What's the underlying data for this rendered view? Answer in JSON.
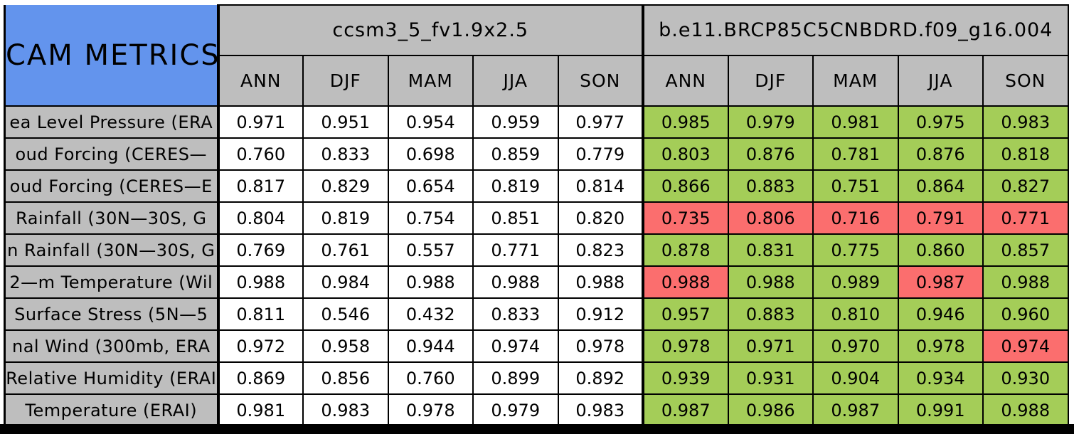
{
  "title": "CAM METRICS",
  "models": [
    {
      "name": "ccsm3_5_fv1.9x2.5"
    },
    {
      "name": "b.e11.BRCP85C5CNBDRD.f09_g16.004"
    }
  ],
  "seasons": [
    "ANN",
    "DJF",
    "MAM",
    "JJA",
    "SON"
  ],
  "colors": {
    "title_blue": "#6394ED",
    "header_gray": "#BEBEBE",
    "improved_green": "#A4CD58",
    "degraded_red": "#FB6E6E",
    "neutral_white": "#FFFFFF",
    "border_black": "#000000"
  },
  "rows": [
    {
      "label": "ea Level Pressure (ERA",
      "model1": [
        "0.971",
        "0.951",
        "0.954",
        "0.959",
        "0.977"
      ],
      "model2": [
        "0.985",
        "0.979",
        "0.981",
        "0.975",
        "0.983"
      ],
      "model2_colors": [
        "green",
        "green",
        "green",
        "green",
        "green"
      ]
    },
    {
      "label": "oud Forcing (CERES—",
      "model1": [
        "0.760",
        "0.833",
        "0.698",
        "0.859",
        "0.779"
      ],
      "model2": [
        "0.803",
        "0.876",
        "0.781",
        "0.876",
        "0.818"
      ],
      "model2_colors": [
        "green",
        "green",
        "green",
        "green",
        "green"
      ]
    },
    {
      "label": "oud Forcing (CERES—E",
      "model1": [
        "0.817",
        "0.829",
        "0.654",
        "0.819",
        "0.814"
      ],
      "model2": [
        "0.866",
        "0.883",
        "0.751",
        "0.864",
        "0.827"
      ],
      "model2_colors": [
        "green",
        "green",
        "green",
        "green",
        "green"
      ]
    },
    {
      "label": "Rainfall (30N—30S, G",
      "model1": [
        "0.804",
        "0.819",
        "0.754",
        "0.851",
        "0.820"
      ],
      "model2": [
        "0.735",
        "0.806",
        "0.716",
        "0.791",
        "0.771"
      ],
      "model2_colors": [
        "red",
        "red",
        "red",
        "red",
        "red"
      ]
    },
    {
      "label": "n Rainfall (30N—30S, G",
      "model1": [
        "0.769",
        "0.761",
        "0.557",
        "0.771",
        "0.823"
      ],
      "model2": [
        "0.878",
        "0.831",
        "0.775",
        "0.860",
        "0.857"
      ],
      "model2_colors": [
        "green",
        "green",
        "green",
        "green",
        "green"
      ]
    },
    {
      "label": "2—m Temperature (Wil",
      "model1": [
        "0.988",
        "0.984",
        "0.988",
        "0.988",
        "0.988"
      ],
      "model2": [
        "0.988",
        "0.988",
        "0.989",
        "0.987",
        "0.988"
      ],
      "model2_colors": [
        "red",
        "green",
        "green",
        "red",
        "green"
      ]
    },
    {
      "label": "Surface Stress (5N—5",
      "model1": [
        "0.811",
        "0.546",
        "0.432",
        "0.833",
        "0.912"
      ],
      "model2": [
        "0.957",
        "0.883",
        "0.810",
        "0.946",
        "0.960"
      ],
      "model2_colors": [
        "green",
        "green",
        "green",
        "green",
        "green"
      ]
    },
    {
      "label": "nal Wind (300mb, ERA",
      "model1": [
        "0.972",
        "0.958",
        "0.944",
        "0.974",
        "0.978"
      ],
      "model2": [
        "0.978",
        "0.971",
        "0.970",
        "0.978",
        "0.974"
      ],
      "model2_colors": [
        "green",
        "green",
        "green",
        "green",
        "red"
      ]
    },
    {
      "label": "Relative Humidity (ERAI",
      "model1": [
        "0.869",
        "0.856",
        "0.760",
        "0.899",
        "0.892"
      ],
      "model2": [
        "0.939",
        "0.931",
        "0.904",
        "0.934",
        "0.930"
      ],
      "model2_colors": [
        "green",
        "green",
        "green",
        "green",
        "green"
      ]
    },
    {
      "label": "Temperature (ERAI)",
      "model1": [
        "0.981",
        "0.983",
        "0.978",
        "0.979",
        "0.983"
      ],
      "model2": [
        "0.987",
        "0.986",
        "0.987",
        "0.991",
        "0.988"
      ],
      "model2_colors": [
        "green",
        "green",
        "green",
        "green",
        "green"
      ]
    }
  ],
  "chart_data": {
    "type": "table",
    "title": "CAM METRICS",
    "column_groups": [
      {
        "name": "ccsm3_5_fv1.9x2.5",
        "columns": [
          "ANN",
          "DJF",
          "MAM",
          "JJA",
          "SON"
        ]
      },
      {
        "name": "b.e11.BRCP85C5CNBDRD.f09_g16.004",
        "columns": [
          "ANN",
          "DJF",
          "MAM",
          "JJA",
          "SON"
        ]
      }
    ],
    "row_labels": [
      "ea Level Pressure (ERA",
      "oud Forcing (CERES—",
      "oud Forcing (CERES—E",
      "Rainfall (30N—30S, G",
      "n Rainfall (30N—30S, G",
      "2—m Temperature (Wil",
      "Surface Stress (5N—5",
      "nal Wind (300mb, ERA",
      "Relative Humidity (ERAI",
      "Temperature (ERAI)"
    ],
    "values_ccsm3_5_fv19x25": [
      [
        0.971,
        0.951,
        0.954,
        0.959,
        0.977
      ],
      [
        0.76,
        0.833,
        0.698,
        0.859,
        0.779
      ],
      [
        0.817,
        0.829,
        0.654,
        0.819,
        0.814
      ],
      [
        0.804,
        0.819,
        0.754,
        0.851,
        0.82
      ],
      [
        0.769,
        0.761,
        0.557,
        0.771,
        0.823
      ],
      [
        0.988,
        0.984,
        0.988,
        0.988,
        0.988
      ],
      [
        0.811,
        0.546,
        0.432,
        0.833,
        0.912
      ],
      [
        0.972,
        0.958,
        0.944,
        0.974,
        0.978
      ],
      [
        0.869,
        0.856,
        0.76,
        0.899,
        0.892
      ],
      [
        0.981,
        0.983,
        0.978,
        0.979,
        0.983
      ]
    ],
    "values_be11_brcp85c5cnbdrd_f09_g16_004": [
      [
        0.985,
        0.979,
        0.981,
        0.975,
        0.983
      ],
      [
        0.803,
        0.876,
        0.781,
        0.876,
        0.818
      ],
      [
        0.866,
        0.883,
        0.751,
        0.864,
        0.827
      ],
      [
        0.735,
        0.806,
        0.716,
        0.791,
        0.771
      ],
      [
        0.878,
        0.831,
        0.775,
        0.86,
        0.857
      ],
      [
        0.988,
        0.988,
        0.989,
        0.987,
        0.988
      ],
      [
        0.957,
        0.883,
        0.81,
        0.946,
        0.96
      ],
      [
        0.978,
        0.971,
        0.97,
        0.978,
        0.974
      ],
      [
        0.939,
        0.931,
        0.904,
        0.934,
        0.93
      ],
      [
        0.987,
        0.986,
        0.987,
        0.991,
        0.988
      ]
    ],
    "cell_highlight_second_model": [
      [
        "green",
        "green",
        "green",
        "green",
        "green"
      ],
      [
        "green",
        "green",
        "green",
        "green",
        "green"
      ],
      [
        "green",
        "green",
        "green",
        "green",
        "green"
      ],
      [
        "red",
        "red",
        "red",
        "red",
        "red"
      ],
      [
        "green",
        "green",
        "green",
        "green",
        "green"
      ],
      [
        "red",
        "green",
        "green",
        "red",
        "green"
      ],
      [
        "green",
        "green",
        "green",
        "green",
        "green"
      ],
      [
        "green",
        "green",
        "green",
        "green",
        "red"
      ],
      [
        "green",
        "green",
        "green",
        "green",
        "green"
      ],
      [
        "green",
        "green",
        "green",
        "green",
        "green"
      ]
    ]
  }
}
